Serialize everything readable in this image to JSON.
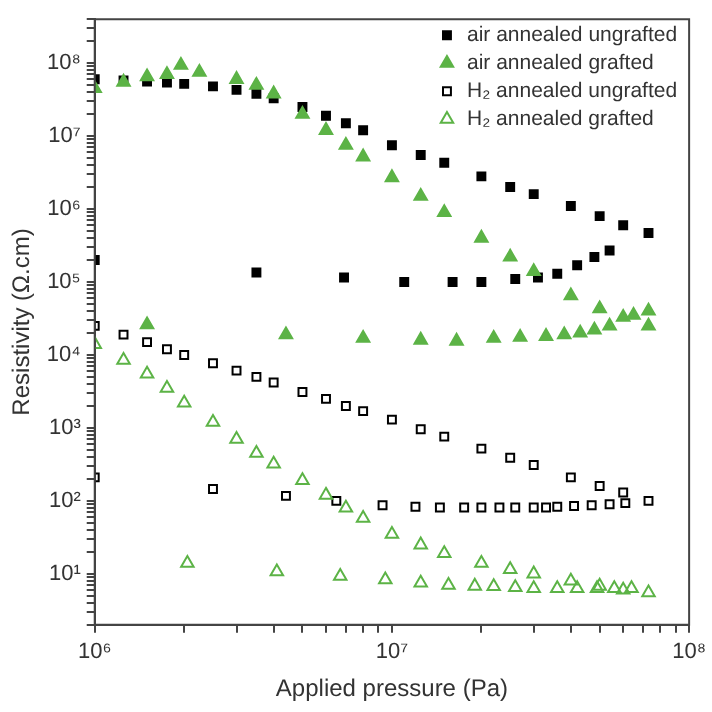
{
  "chart_data": {
    "type": "scatter",
    "xlabel": "Applied pressure (Pa)",
    "ylabel": "Resistivity (Ω.cm)",
    "log": "xy",
    "grid": false,
    "legend": "top right",
    "xlim": [
      1000000,
      100000000
    ],
    "ylim": [
      2,
      400000000
    ],
    "xticks": [
      {
        "value": 1000000,
        "label": "10⁶"
      },
      {
        "value": 2000000,
        "label": null
      },
      {
        "value": 3000000,
        "label": null
      },
      {
        "value": 4000000,
        "label": null
      },
      {
        "value": 5000000,
        "label": null
      },
      {
        "value": 6000000,
        "label": null
      },
      {
        "value": 7000000,
        "label": null
      },
      {
        "value": 8000000,
        "label": null
      },
      {
        "value": 9000000,
        "label": null
      },
      {
        "value": 10000000,
        "label": "10⁷"
      },
      {
        "value": 20000000,
        "label": null
      },
      {
        "value": 30000000,
        "label": null
      },
      {
        "value": 40000000,
        "label": null
      },
      {
        "value": 50000000,
        "label": null
      },
      {
        "value": 60000000,
        "label": null
      },
      {
        "value": 70000000,
        "label": null
      },
      {
        "value": 80000000,
        "label": null
      },
      {
        "value": 90000000,
        "label": null
      },
      {
        "value": 100000000,
        "label": "10⁸"
      }
    ],
    "yticks": [
      {
        "value": 2,
        "label": null
      },
      {
        "value": 3,
        "label": null
      },
      {
        "value": 4,
        "label": null
      },
      {
        "value": 5,
        "label": null
      },
      {
        "value": 6,
        "label": null
      },
      {
        "value": 7,
        "label": null
      },
      {
        "value": 8,
        "label": null
      },
      {
        "value": 9,
        "label": null
      },
      {
        "value": 10,
        "label": "10¹"
      },
      {
        "value": 20,
        "label": null
      },
      {
        "value": 30,
        "label": null
      },
      {
        "value": 40,
        "label": null
      },
      {
        "value": 50,
        "label": null
      },
      {
        "value": 60,
        "label": null
      },
      {
        "value": 70,
        "label": null
      },
      {
        "value": 80,
        "label": null
      },
      {
        "value": 90,
        "label": null
      },
      {
        "value": 100,
        "label": "10²"
      },
      {
        "value": 200,
        "label": null
      },
      {
        "value": 300,
        "label": null
      },
      {
        "value": 400,
        "label": null
      },
      {
        "value": 500,
        "label": null
      },
      {
        "value": 600,
        "label": null
      },
      {
        "value": 700,
        "label": null
      },
      {
        "value": 800,
        "label": null
      },
      {
        "value": 900,
        "label": null
      },
      {
        "value": 1000,
        "label": "10³"
      },
      {
        "value": 2000,
        "label": null
      },
      {
        "value": 3000,
        "label": null
      },
      {
        "value": 4000,
        "label": null
      },
      {
        "value": 5000,
        "label": null
      },
      {
        "value": 6000,
        "label": null
      },
      {
        "value": 7000,
        "label": null
      },
      {
        "value": 8000,
        "label": null
      },
      {
        "value": 9000,
        "label": null
      },
      {
        "value": 10000,
        "label": "10⁴"
      },
      {
        "value": 20000,
        "label": null
      },
      {
        "value": 30000,
        "label": null
      },
      {
        "value": 40000,
        "label": null
      },
      {
        "value": 50000,
        "label": null
      },
      {
        "value": 60000,
        "label": null
      },
      {
        "value": 70000,
        "label": null
      },
      {
        "value": 80000,
        "label": null
      },
      {
        "value": 90000,
        "label": null
      },
      {
        "value": 100000,
        "label": "10⁵"
      },
      {
        "value": 200000,
        "label": null
      },
      {
        "value": 300000,
        "label": null
      },
      {
        "value": 400000,
        "label": null
      },
      {
        "value": 500000,
        "label": null
      },
      {
        "value": 600000,
        "label": null
      },
      {
        "value": 700000,
        "label": null
      },
      {
        "value": 800000,
        "label": null
      },
      {
        "value": 900000,
        "label": null
      },
      {
        "value": 1000000,
        "label": "10⁶"
      },
      {
        "value": 2000000,
        "label": null
      },
      {
        "value": 3000000,
        "label": null
      },
      {
        "value": 4000000,
        "label": null
      },
      {
        "value": 5000000,
        "label": null
      },
      {
        "value": 6000000,
        "label": null
      },
      {
        "value": 7000000,
        "label": null
      },
      {
        "value": 8000000,
        "label": null
      },
      {
        "value": 9000000,
        "label": null
      },
      {
        "value": 10000000,
        "label": "10⁷"
      },
      {
        "value": 20000000,
        "label": null
      },
      {
        "value": 30000000,
        "label": null
      },
      {
        "value": 40000000,
        "label": null
      },
      {
        "value": 50000000,
        "label": null
      },
      {
        "value": 60000000,
        "label": null
      },
      {
        "value": 70000000,
        "label": null
      },
      {
        "value": 80000000,
        "label": null
      },
      {
        "value": 90000000,
        "label": null
      },
      {
        "value": 100000000,
        "label": "10⁸"
      },
      {
        "value": 200000000,
        "label": null
      },
      {
        "value": 300000000,
        "label": null
      },
      {
        "value": 400000000,
        "label": null
      }
    ],
    "series": [
      {
        "name": "air annealed ungrafted",
        "color": "#000000",
        "marker": "square",
        "x": [
          1000000,
          1250000,
          1500000,
          1750000,
          2000000,
          2500000,
          3000000,
          3500000,
          4000000,
          5000000,
          6000000,
          7000000,
          8000000,
          10000000,
          12500000,
          15000000,
          20000000,
          25000000,
          30000000,
          40000000,
          50000000,
          60000000,
          73000000,
          54000000,
          48000000,
          42000000,
          36000000,
          31000000,
          26000000,
          20000000,
          16000000,
          11000000,
          6900000,
          3500000,
          1000000
        ],
        "values": [
          60000000,
          58000000,
          56000000,
          54000000,
          52000000,
          48000000,
          43000000,
          38000000,
          33000000,
          25000000,
          19000000,
          15000000,
          12000000,
          7500000,
          5500000,
          4300000,
          2800000,
          2000000,
          1600000,
          1100000,
          800000,
          600000,
          470000,
          270000,
          220000,
          170000,
          130000,
          115000,
          110000,
          100000,
          100000,
          100000,
          115000,
          135000,
          200000
        ]
      },
      {
        "name": "air annealed grafted",
        "color": "#5cb346",
        "marker": "triangle",
        "x": [
          1000000,
          1250000,
          1500000,
          1750000,
          1950000,
          2250000,
          3000000,
          3500000,
          4000000,
          5000000,
          6000000,
          7000000,
          8000000,
          10000000,
          12500000,
          15000000,
          20000000,
          25000000,
          30000000,
          40000000,
          50000000,
          60000000,
          73000000,
          73000000,
          65000000,
          54000000,
          48000000,
          43000000,
          38000000,
          33000000,
          27000000,
          22000000,
          16500000,
          12500000,
          8000000,
          4400000,
          1500000
        ],
        "values": [
          45000000,
          55000000,
          65000000,
          70000000,
          94000000,
          75000000,
          60000000,
          50000000,
          38000000,
          20000000,
          12000000,
          7500000,
          5200000,
          2700000,
          1500000,
          900000,
          400000,
          220000,
          140000,
          65000,
          43000,
          33000,
          25000,
          40000,
          35000,
          25000,
          22000,
          20000,
          19000,
          18000,
          17500,
          17000,
          15500,
          16000,
          17000,
          19000,
          26000
        ]
      },
      {
        "name": "H₂ annealed ungrafted",
        "color": "#000000",
        "marker": "square-open",
        "x": [
          1000000,
          1250000,
          1500000,
          1750000,
          2000000,
          2500000,
          3000000,
          3500000,
          4000000,
          5000000,
          6000000,
          7000000,
          8000000,
          10000000,
          12500000,
          15000000,
          20000000,
          25000000,
          30000000,
          40000000,
          50000000,
          60000000,
          73000000,
          61000000,
          54000000,
          47000000,
          41000000,
          36000000,
          33000000,
          30000000,
          26000000,
          23000000,
          20000000,
          17500000,
          14500000,
          12000000,
          9300000,
          6500000,
          4400000,
          2500000,
          1000000
        ],
        "values": [
          25000,
          19000,
          15000,
          12000,
          10000,
          7700,
          6100,
          5000,
          4200,
          3100,
          2500,
          2000,
          1700,
          1300,
          960,
          760,
          520,
          390,
          310,
          210,
          160,
          130,
          100,
          93,
          90,
          87,
          85,
          83,
          81,
          81,
          81,
          81,
          81,
          81,
          81,
          83,
          87,
          100,
          117,
          145,
          210
        ]
      },
      {
        "name": "H₂ annealed grafted",
        "color": "#5cb346",
        "marker": "triangle-open",
        "x": [
          1000000,
          1250000,
          1500000,
          1750000,
          2000000,
          2500000,
          3000000,
          3500000,
          4000000,
          5000000,
          6000000,
          7000000,
          8000000,
          10000000,
          12500000,
          15000000,
          20000000,
          25000000,
          30000000,
          40000000,
          50000000,
          60000000,
          73000000,
          64000000,
          56000000,
          49000000,
          42000000,
          36000000,
          30000000,
          26000000,
          22000000,
          19000000,
          15500000,
          12500000,
          9500000,
          6700000,
          4100000,
          2050000
        ],
        "values": [
          14000,
          8500,
          5500,
          3500,
          2200,
          1200,
          700,
          450,
          320,
          190,
          120,
          80,
          58,
          35,
          25,
          19,
          14,
          11.5,
          10,
          8,
          6.8,
          6,
          5.5,
          6.3,
          6.3,
          6.3,
          6.3,
          6.3,
          6.3,
          6.5,
          6.7,
          6.8,
          7,
          7.5,
          8.3,
          9.3,
          10.7,
          14
        ]
      }
    ]
  }
}
